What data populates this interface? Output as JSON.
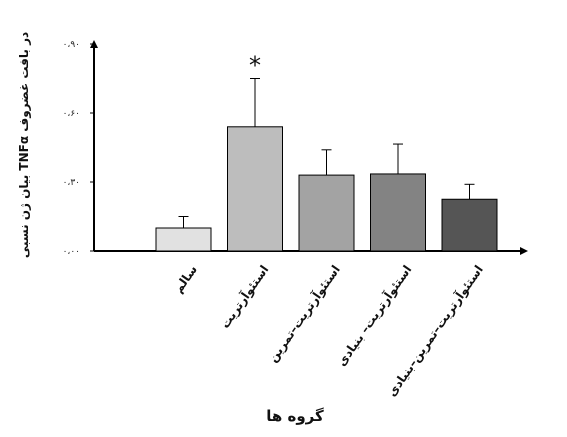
{
  "chart_data": {
    "type": "bar",
    "xlabel": "گروه ها",
    "ylabel": "بیان ژن نسبی TNFα در بافت غضروف",
    "ylim": [
      0,
      0.9
    ],
    "yticks": [
      0,
      0.3,
      0.6,
      0.9
    ],
    "ytick_labels": [
      "۰،۰۰",
      "۰،۳۰",
      "۰،۶۰",
      "۰،۹۰"
    ],
    "grid": false,
    "categories": [
      "سالم",
      "استئوآرتریت",
      "استئوآرتریت–تمرین",
      "استئوآرتریت– بنیادی",
      "استئوآرتریت–تمرین–بنیادی"
    ],
    "values": [
      0.1,
      0.54,
      0.33,
      0.335,
      0.225
    ],
    "errors": [
      0.05,
      0.21,
      0.11,
      0.13,
      0.065
    ],
    "annotations": [
      "",
      "*",
      "",
      "",
      ""
    ],
    "colors": [
      "#e1e1e1",
      "#bdbdbd",
      "#a3a3a3",
      "#838383",
      "#555555"
    ]
  }
}
